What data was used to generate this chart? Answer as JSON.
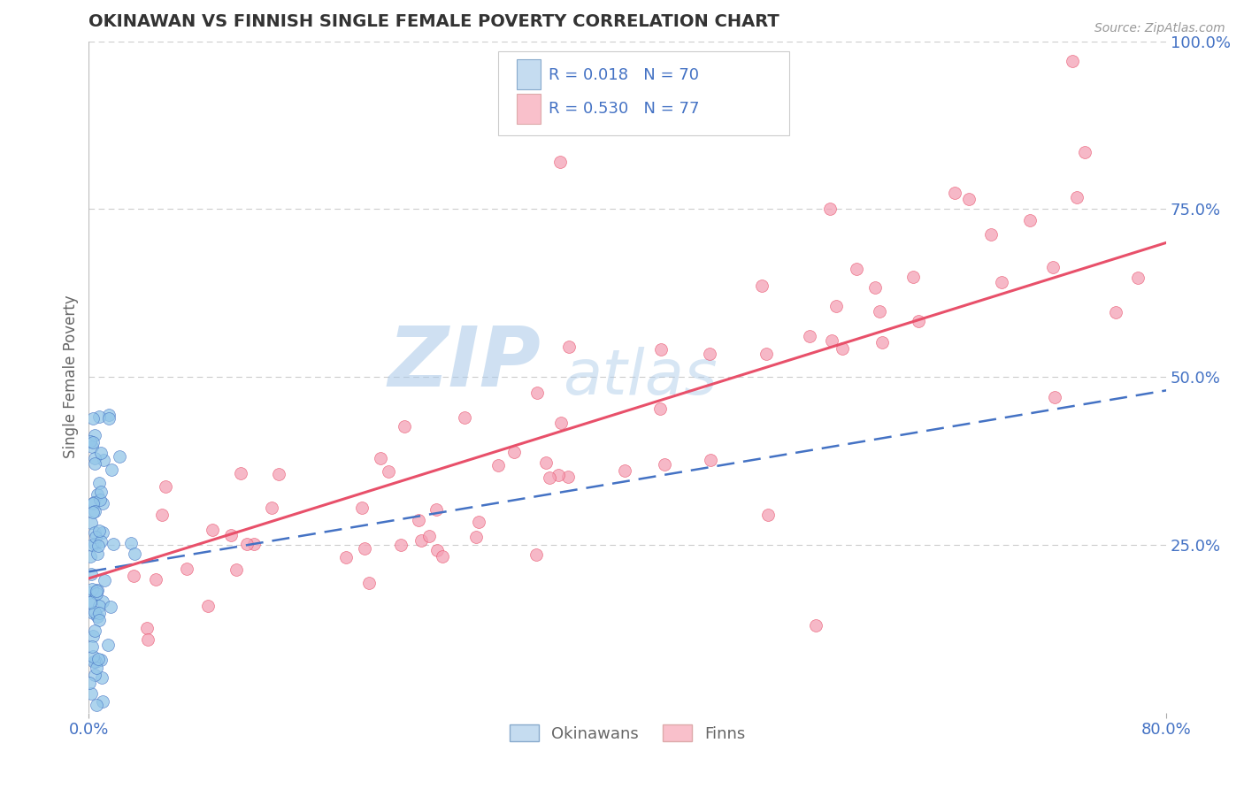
{
  "title": "OKINAWAN VS FINNISH SINGLE FEMALE POVERTY CORRELATION CHART",
  "source": "Source: ZipAtlas.com",
  "ylabel": "Single Female Poverty",
  "xlim": [
    0.0,
    0.8
  ],
  "ylim": [
    0.0,
    1.0
  ],
  "okinawan_R": 0.018,
  "okinawan_N": 70,
  "finn_R": 0.53,
  "finn_N": 77,
  "scatter_blue_color": "#93C6E8",
  "scatter_pink_color": "#F4A0B5",
  "line_blue_color": "#4472C4",
  "line_pink_color": "#E8506A",
  "legend_blue_fill": "#C5DCF0",
  "legend_pink_fill": "#F9C0CB",
  "watermark_ZIP_color": "#A8C8E8",
  "watermark_atlas_color": "#A8C8E8",
  "background_color": "#FFFFFF",
  "grid_color": "#CCCCCC",
  "title_color": "#333333",
  "axis_label_color": "#666666",
  "tick_label_color": "#4472C4",
  "title_fontsize": 14,
  "axis_fontsize": 12,
  "tick_fontsize": 13,
  "source_fontsize": 10
}
